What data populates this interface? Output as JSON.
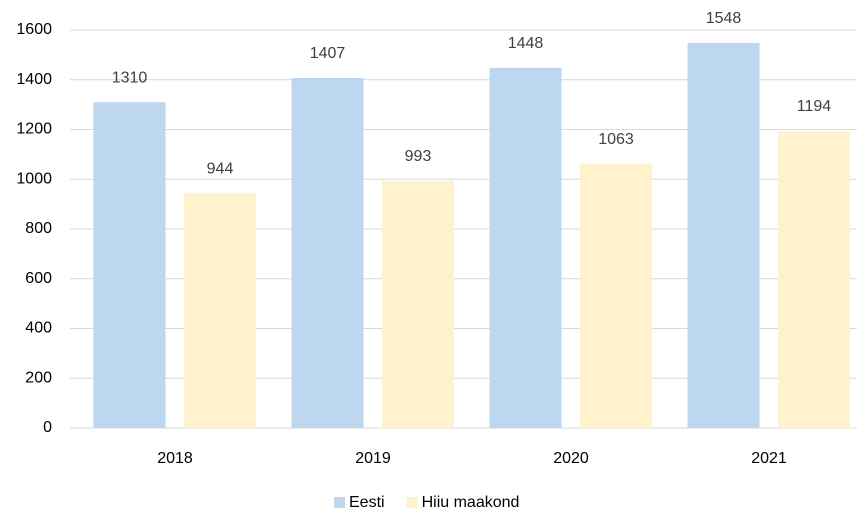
{
  "chart_data": {
    "type": "bar",
    "categories": [
      "2018",
      "2019",
      "2020",
      "2021"
    ],
    "series": [
      {
        "name": "Eesti",
        "color": "#bdd7ee",
        "values": [
          1310,
          1407,
          1448,
          1548
        ]
      },
      {
        "name": "Hiiu maakond",
        "color": "#fff2cc",
        "values": [
          944,
          993,
          1063,
          1194
        ]
      }
    ],
    "ylim": [
      0,
      1600
    ],
    "yticks": [
      0,
      200,
      400,
      600,
      800,
      1000,
      1200,
      1400,
      1600
    ],
    "grid": true,
    "legend": "bottom"
  }
}
